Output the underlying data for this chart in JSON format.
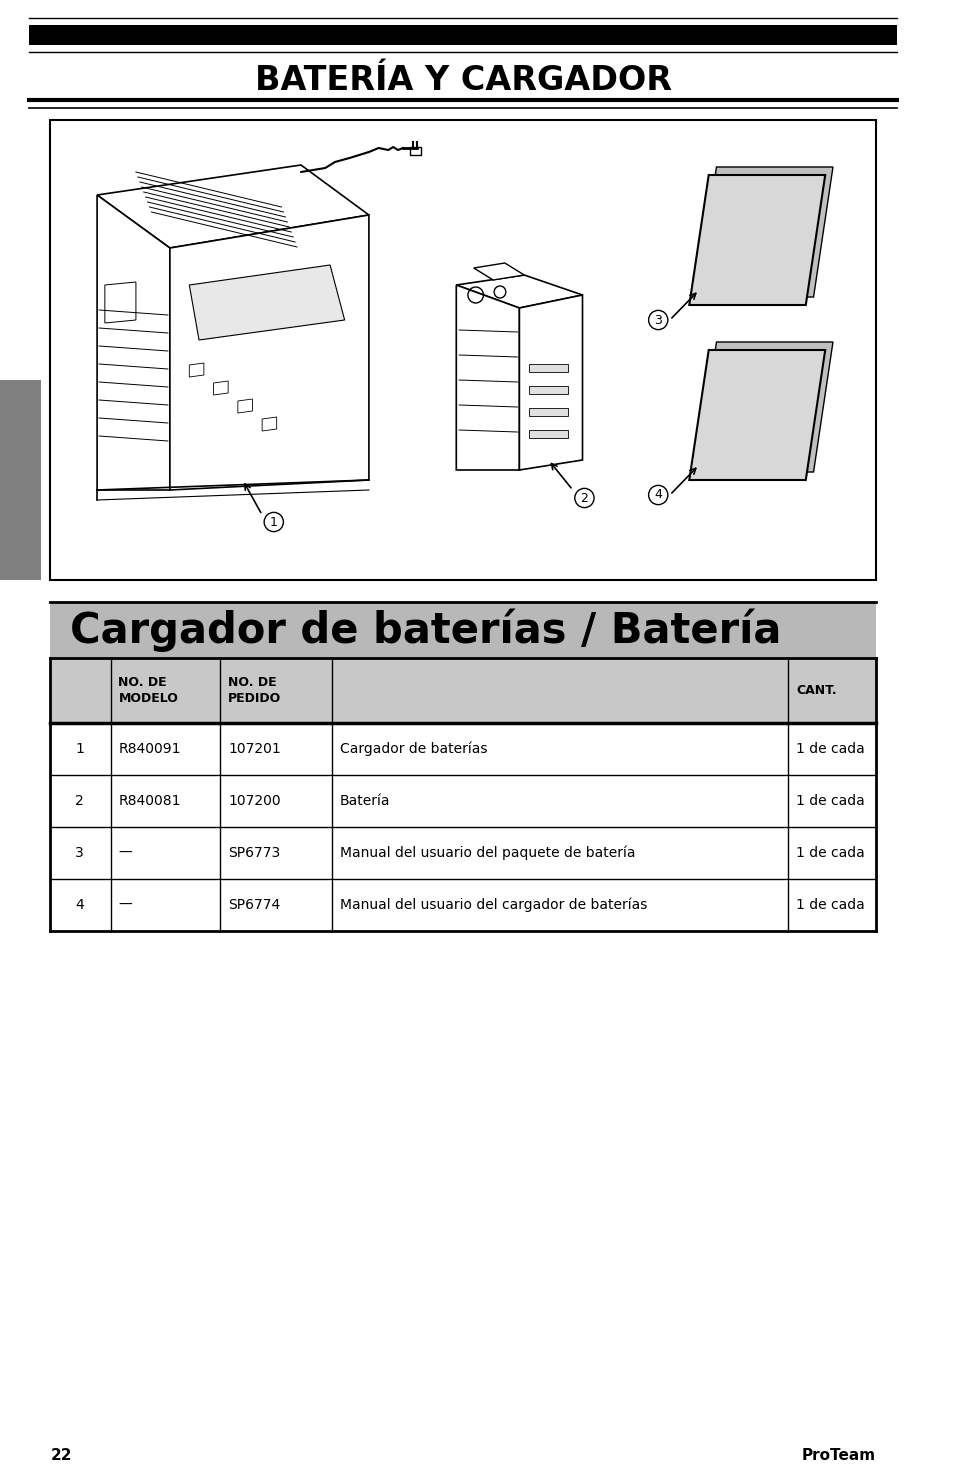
{
  "page_title": "BATERÍA Y CARGADOR",
  "section_title": "Cargador de baterías / Batería",
  "header_row": [
    "NO. DE\nMODELO",
    "NO. DE\nPEDIDO",
    "CANT."
  ],
  "table_rows": [
    [
      "1",
      "R840091",
      "107201",
      "Cargador de baterías",
      "1 de cada"
    ],
    [
      "2",
      "R840081",
      "107200",
      "Batería",
      "1 de cada"
    ],
    [
      "3",
      "—",
      "SP6773",
      "Manual del usuario del paquete de batería",
      "1 de cada"
    ],
    [
      "4",
      "—",
      "SP6774",
      "Manual del usuario del cargador de baterías",
      "1 de cada"
    ]
  ],
  "page_number": "22",
  "brand": "ProTeam",
  "bg_color": "#ffffff",
  "section_title_bg": "#b8b8b8",
  "table_header_bg": "#c8c8c8",
  "side_bar_color": "#808080"
}
